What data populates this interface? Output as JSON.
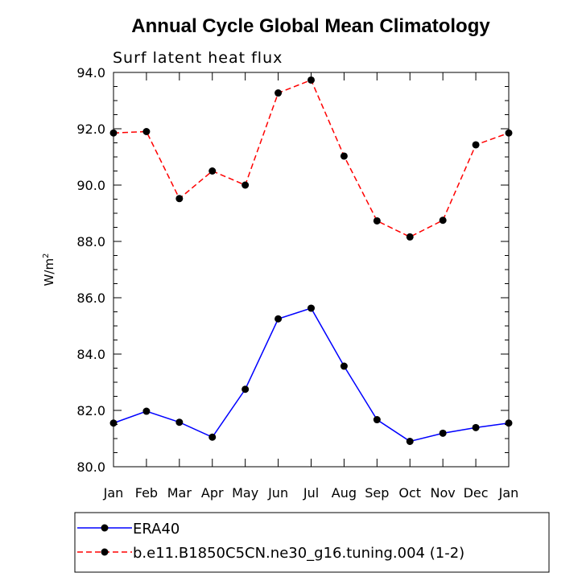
{
  "chart_data": {
    "type": "line",
    "title": "Annual Cycle Global Mean Climatology",
    "subtitle": "Surf latent heat flux",
    "ylabel": "W/m",
    "ylabel_superscript": "2",
    "ylim": [
      80.0,
      94.0
    ],
    "y_ticks": [
      "80.0",
      "82.0",
      "84.0",
      "86.0",
      "88.0",
      "90.0",
      "92.0",
      "94.0"
    ],
    "y_tick_values": [
      80,
      82,
      84,
      86,
      88,
      90,
      92,
      94
    ],
    "categories": [
      "Jan",
      "Feb",
      "Mar",
      "Apr",
      "May",
      "Jun",
      "Jul",
      "Aug",
      "Sep",
      "Oct",
      "Nov",
      "Dec",
      "Jan"
    ],
    "legend_position": "bottom",
    "series": [
      {
        "name": "ERA40",
        "color": "#0000ff",
        "line_style": "solid",
        "values": [
          81.55,
          81.97,
          81.58,
          81.05,
          82.75,
          85.25,
          85.63,
          83.57,
          81.67,
          80.9,
          81.19,
          81.39,
          81.55
        ]
      },
      {
        "name": "b.e11.B1850C5CN.ne30_g16.tuning.004 (1-2)",
        "color": "#ff0000",
        "line_style": "dashed",
        "values": [
          91.85,
          91.9,
          89.52,
          90.5,
          90.0,
          93.27,
          93.73,
          91.03,
          88.73,
          88.16,
          88.75,
          91.43,
          91.85
        ]
      }
    ]
  }
}
